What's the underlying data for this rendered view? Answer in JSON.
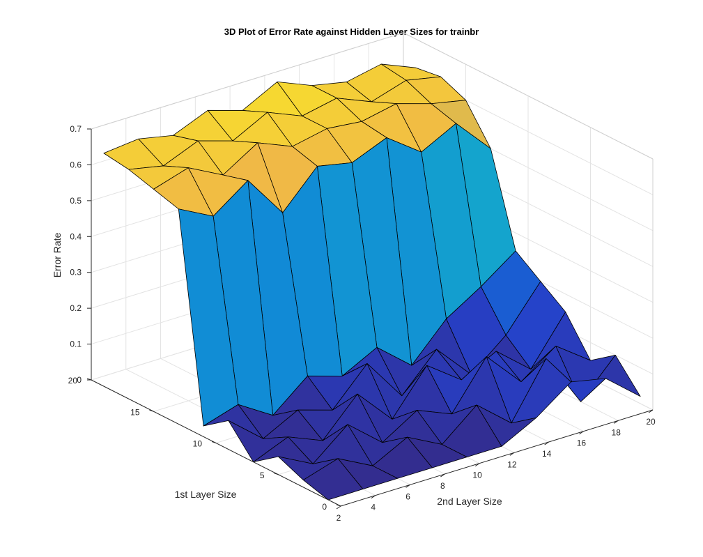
{
  "chart_data": {
    "type": "surface",
    "title": "3D Plot of Error Rate against Hidden Layer Sizes for trainbr",
    "xlabel": "2nd Layer Size",
    "ylabel": "1st Layer Size",
    "zlabel": "Error Rate",
    "xlim": [
      2,
      20
    ],
    "ylim": [
      0,
      20
    ],
    "zlim": [
      0,
      0.7
    ],
    "xticks": [
      "2",
      "4",
      "6",
      "8",
      "10",
      "12",
      "14",
      "16",
      "18",
      "20"
    ],
    "yticks": [
      "0",
      "5",
      "10",
      "15",
      "20"
    ],
    "zticks": [
      "0",
      "0.1",
      "0.2",
      "0.3",
      "0.4",
      "0.5",
      "0.6",
      "0.7"
    ],
    "grid": true,
    "colormap": "parula",
    "colors": {
      "low": "#352a87",
      "mid": "#0f7fd8",
      "teal": "#1ab5b8",
      "high": "#f9d23d"
    },
    "x": [
      2,
      4,
      6,
      8,
      10,
      12,
      14,
      16,
      18,
      20
    ],
    "y": [
      1,
      3,
      5,
      7,
      9,
      11,
      13,
      15,
      17,
      19
    ],
    "z": [
      [
        0.0,
        0.0,
        0.0,
        0.0,
        0.0,
        0.0,
        0.05,
        0.12,
        0.1,
        0.02
      ],
      [
        0.02,
        0.05,
        0.0,
        0.05,
        0.0,
        0.08,
        0.0,
        0.15,
        0.0,
        0.1
      ],
      [
        0.05,
        0.0,
        0.08,
        0.0,
        0.06,
        0.02,
        0.15,
        0.05,
        0.12,
        0.05
      ],
      [
        0.0,
        0.04,
        0.0,
        0.1,
        0.0,
        0.12,
        0.05,
        0.1,
        0.02,
        0.15
      ],
      [
        0.08,
        0.0,
        0.05,
        0.02,
        0.12,
        0.0,
        0.1,
        0.0,
        0.08,
        0.2
      ],
      [
        0.03,
        0.06,
        0.0,
        0.08,
        0.05,
        0.1,
        0.02,
        0.12,
        0.18,
        0.25
      ],
      [
        0.6,
        0.55,
        0.62,
        0.5,
        0.6,
        0.58,
        0.62,
        0.55,
        0.6,
        0.5
      ],
      [
        0.62,
        0.65,
        0.6,
        0.66,
        0.62,
        0.64,
        0.63,
        0.65,
        0.62,
        0.6
      ],
      [
        0.64,
        0.62,
        0.66,
        0.63,
        0.68,
        0.64,
        0.66,
        0.62,
        0.65,
        0.63
      ],
      [
        0.65,
        0.66,
        0.64,
        0.68,
        0.65,
        0.7,
        0.66,
        0.64,
        0.66,
        0.62
      ]
    ]
  }
}
